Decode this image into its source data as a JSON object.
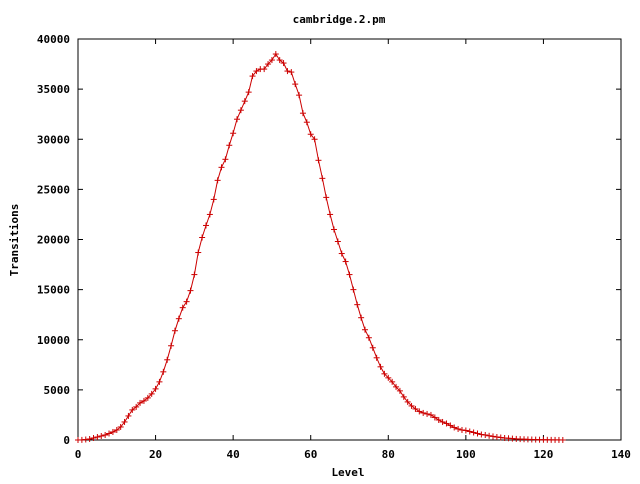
{
  "chart_data": {
    "type": "line",
    "title": "cambridge.2.pm",
    "xlabel": "Level",
    "ylabel": "Transitions",
    "xlim": [
      0,
      140
    ],
    "ylim": [
      0,
      40000
    ],
    "x_ticks": [
      0,
      20,
      40,
      60,
      80,
      100,
      120,
      140
    ],
    "y_ticks": [
      0,
      5000,
      10000,
      15000,
      20000,
      25000,
      30000,
      35000,
      40000
    ],
    "grid": false,
    "legend": "none",
    "series": [
      {
        "color": "#cc0000",
        "marker": "plus",
        "x": [
          0,
          1,
          2,
          3,
          4,
          5,
          6,
          7,
          8,
          9,
          10,
          11,
          12,
          13,
          14,
          15,
          16,
          17,
          18,
          19,
          20,
          21,
          22,
          23,
          24,
          25,
          26,
          27,
          28,
          29,
          30,
          31,
          32,
          33,
          34,
          35,
          36,
          37,
          38,
          39,
          40,
          41,
          42,
          43,
          44,
          45,
          46,
          47,
          48,
          49,
          50,
          51,
          52,
          53,
          54,
          55,
          56,
          57,
          58,
          59,
          60,
          61,
          62,
          63,
          64,
          65,
          66,
          67,
          68,
          69,
          70,
          71,
          72,
          73,
          74,
          75,
          76,
          77,
          78,
          79,
          80,
          81,
          82,
          83,
          84,
          85,
          86,
          87,
          88,
          89,
          90,
          91,
          92,
          93,
          94,
          95,
          96,
          97,
          98,
          99,
          100,
          101,
          102,
          103,
          104,
          105,
          106,
          107,
          108,
          109,
          110,
          111,
          112,
          113,
          114,
          115,
          116,
          117,
          118,
          119,
          120,
          121,
          122,
          123,
          124,
          125
        ],
        "values": [
          0,
          10,
          50,
          100,
          200,
          300,
          400,
          500,
          650,
          800,
          1000,
          1300,
          1800,
          2400,
          3000,
          3300,
          3700,
          3900,
          4200,
          4600,
          5100,
          5800,
          6800,
          8000,
          9400,
          10900,
          12100,
          13200,
          13800,
          14900,
          16500,
          18700,
          20200,
          21400,
          22500,
          24000,
          25900,
          27200,
          28000,
          29400,
          30600,
          32000,
          32900,
          33800,
          34700,
          36300,
          36800,
          37000,
          37000,
          37500,
          37900,
          38500,
          37900,
          37600,
          36800,
          36700,
          35500,
          34400,
          32600,
          31700,
          30500,
          30000,
          27900,
          26100,
          24200,
          22500,
          21000,
          19800,
          18600,
          17800,
          16500,
          15000,
          13500,
          12200,
          11000,
          10200,
          9200,
          8200,
          7300,
          6600,
          6200,
          5800,
          5300,
          4900,
          4300,
          3800,
          3400,
          3100,
          2850,
          2700,
          2600,
          2500,
          2250,
          2000,
          1800,
          1650,
          1450,
          1250,
          1100,
          1000,
          950,
          850,
          750,
          650,
          550,
          500,
          420,
          360,
          300,
          250,
          200,
          170,
          140,
          110,
          90,
          75,
          60,
          50,
          40,
          30,
          25,
          18,
          12,
          8,
          5,
          2
        ]
      }
    ]
  }
}
